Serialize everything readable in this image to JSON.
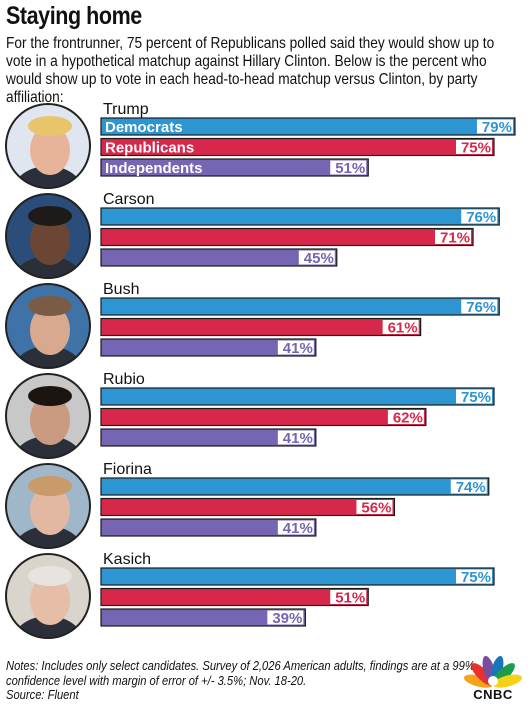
{
  "title": "Staying home",
  "subtitle": "For the frontrunner, 75 percent of Republicans polled said they would show up to vote in a hypothetical matchup against Hillary Clinton. Below is the percent who would show up to vote in each head-to-head matchup versus Clinton, by party affiliation:",
  "notes": "Notes: Includes only select candidates. Survey of 2,026 American adults, findings are at a 99% confidence level with margin of error of +/- 3.5%; Nov. 18-20.",
  "source": "Source: Fluent",
  "logo_text": "CNBC",
  "chart_data": {
    "type": "bar",
    "orientation": "horizontal",
    "xlim": [
      0,
      80
    ],
    "grid": false,
    "value_suffix": "%",
    "categories": [
      "Trump",
      "Carson",
      "Bush",
      "Rubio",
      "Fiorina",
      "Kasich"
    ],
    "series": [
      {
        "name": "Democrats",
        "color": "#2e95d3",
        "values": [
          79,
          76,
          76,
          75,
          74,
          75
        ]
      },
      {
        "name": "Republicans",
        "color": "#d7284b",
        "values": [
          75,
          71,
          61,
          62,
          56,
          51
        ]
      },
      {
        "name": "Independents",
        "color": "#7565b3",
        "values": [
          51,
          45,
          41,
          41,
          41,
          39
        ]
      }
    ]
  }
}
